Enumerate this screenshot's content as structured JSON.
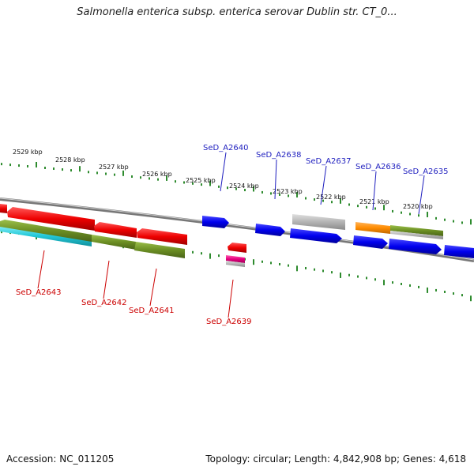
{
  "title": "Salmonella enterica subsp. enterica serovar Dublin str. CT_0...",
  "footer": {
    "accession": "Accession: NC_011205",
    "topology": "Topology: circular; Length: 4,842,908 bp; Genes: 4,618"
  },
  "ruler": {
    "ticks": [
      "2529 kbp",
      "2528 kbp",
      "2527 kbp",
      "2526 kbp",
      "2525 kbp",
      "2524 kbp",
      "2523 kbp",
      "2522 kbp",
      "2521 kbp",
      "2520 kbp"
    ]
  },
  "gene_labels_top": [
    "SeD_A2640",
    "SeD_A2638",
    "SeD_A2637",
    "SeD_A2636",
    "SeD_A2635"
  ],
  "gene_labels_bottom": [
    "SeD_A2643",
    "SeD_A2642",
    "SeD_A2641",
    "SeD_A2639"
  ],
  "colors": {
    "ruler_tick": "#2e8b2e",
    "backbone": "#888888",
    "forward_gene": "#0000ee",
    "reverse_gene": "#ee0000",
    "olive_track": "#6b8e23",
    "cyan_track": "#22c8d8",
    "grey_gene": "#aaaaaa",
    "orange_gene": "#ff8c00",
    "pink_gene": "#e6007e",
    "label_blue": "#1f1fbf",
    "label_red": "#cc0000"
  }
}
